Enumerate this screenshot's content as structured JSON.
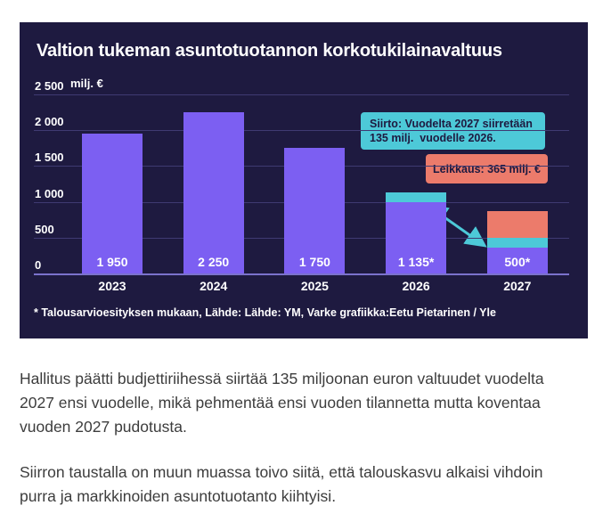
{
  "chart": {
    "title": "Valtion tukeman asuntotuotannon korkotukilainavaltuus",
    "unit_label": "milj. €",
    "background": "#1e1a40",
    "colors": {
      "base": "#7c5ff2",
      "transfer": "#4dc9d8",
      "cut": "#ec7b6b",
      "gridline": "#3f3a72",
      "baseline": "#7b72cc",
      "text": "#ffffff",
      "annotation_text": "#1e1a40"
    },
    "y_ticks": [
      "2 500",
      "2 000",
      "1 500",
      "1 000",
      "500",
      "0"
    ],
    "annotations": {
      "transfer": {
        "line1": "Siirto: Vuodelta 2027 siirretään",
        "line2": "135 milj.  vuodelle 2026."
      },
      "cut": {
        "text": "Leikkaus: 365 milj. €"
      }
    },
    "footnote": "* Talousarvioesityksen mukaan, Lähde: Lähde: YM, Varke grafiikka:Eetu Pietarinen / Yle"
  },
  "chart_data": {
    "type": "bar",
    "title": "Valtion tukeman asuntotuotannon korkotukilainavaltuus",
    "xlabel": "",
    "ylabel": "milj. €",
    "ylim": [
      0,
      2500
    ],
    "y_tick_values": [
      2500,
      2000,
      1500,
      1000,
      500,
      0
    ],
    "grid": true,
    "legend": false,
    "categories": [
      "2023",
      "2024",
      "2025",
      "2026",
      "2027"
    ],
    "series": [
      {
        "name": "Korkotukilainavaltuus",
        "color_key": "base",
        "values": [
          1950,
          2250,
          1750,
          1000,
          365
        ]
      },
      {
        "name": "Siirto 135 milj. (2027 → 2026)",
        "color_key": "transfer",
        "values": [
          0,
          0,
          0,
          135,
          135
        ]
      },
      {
        "name": "Leikkaus 365 milj.",
        "color_key": "cut",
        "values": [
          0,
          0,
          0,
          0,
          365
        ]
      }
    ],
    "bar_labels": [
      "1 950",
      "2 250",
      "1 750",
      "1 135*",
      "500*"
    ],
    "labeled_totals": [
      1950,
      2250,
      1750,
      1135,
      500
    ],
    "annotations": [
      "Siirto: Vuodelta 2027 siirretään 135 milj. vuodelle 2026.",
      "Leikkaus: 365 milj. €"
    ]
  },
  "article": {
    "paragraphs": [
      "Hallitus päätti budjettiriihessä siirtää 135 miljoonan euron valtuudet vuodelta 2027 ensi vuodelle, mikä pehmentää ensi vuoden tilannetta mutta koventaa vuoden 2027 pudotusta.",
      "Siirron taustalla on muun muassa toivo siitä, että talouskasvu alkaisi vihdoin purra ja markkinoiden asuntotuotanto kiihtyisi."
    ]
  }
}
